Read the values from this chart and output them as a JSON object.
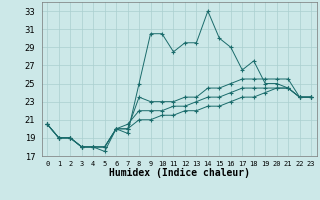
{
  "xlabel": "Humidex (Indice chaleur)",
  "bg_color": "#cce8e8",
  "line_color": "#1a6b6b",
  "grid_color": "#aacfcf",
  "xlim": [
    -0.5,
    23.5
  ],
  "ylim": [
    17,
    34
  ],
  "yticks": [
    17,
    19,
    21,
    23,
    25,
    27,
    29,
    31,
    33
  ],
  "xticks": [
    0,
    1,
    2,
    3,
    4,
    5,
    6,
    7,
    8,
    9,
    10,
    11,
    12,
    13,
    14,
    15,
    16,
    17,
    18,
    19,
    20,
    21,
    22,
    23
  ],
  "xtick_labels": [
    "0",
    "1",
    "2",
    "3",
    "4",
    "5",
    "6",
    "7",
    "8",
    "9",
    "10",
    "11",
    "12",
    "13",
    "14",
    "15",
    "16",
    "17",
    "18",
    "19",
    "20",
    "21",
    "22",
    "23"
  ],
  "series": [
    [
      20.5,
      19.0,
      19.0,
      18.0,
      18.0,
      18.0,
      20.0,
      19.5,
      25.0,
      30.5,
      30.5,
      28.5,
      29.5,
      29.5,
      33.0,
      30.0,
      29.0,
      26.5,
      27.5,
      25.0,
      25.0,
      24.5,
      23.5,
      23.5
    ],
    [
      20.5,
      19.0,
      19.0,
      18.0,
      18.0,
      18.0,
      20.0,
      20.0,
      23.5,
      23.0,
      23.0,
      23.0,
      23.5,
      23.5,
      24.5,
      24.5,
      25.0,
      25.5,
      25.5,
      25.5,
      25.5,
      25.5,
      23.5,
      23.5
    ],
    [
      20.5,
      19.0,
      19.0,
      18.0,
      18.0,
      18.0,
      20.0,
      20.5,
      22.0,
      22.0,
      22.0,
      22.5,
      22.5,
      23.0,
      23.5,
      23.5,
      24.0,
      24.5,
      24.5,
      24.5,
      24.5,
      24.5,
      23.5,
      23.5
    ],
    [
      20.5,
      19.0,
      19.0,
      18.0,
      18.0,
      17.5,
      20.0,
      20.0,
      21.0,
      21.0,
      21.5,
      21.5,
      22.0,
      22.0,
      22.5,
      22.5,
      23.0,
      23.5,
      23.5,
      24.0,
      24.5,
      24.5,
      23.5,
      23.5
    ]
  ]
}
